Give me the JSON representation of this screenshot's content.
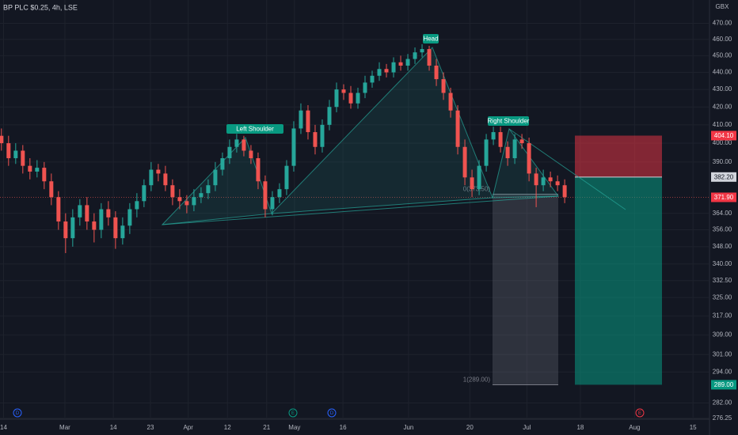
{
  "chart_data": {
    "type": "candlestick",
    "title": "BP PLC $0.25, 4h, LSE",
    "y_unit": "GBX",
    "log_scale": true,
    "grid": true,
    "up_color": "#26a69a",
    "down_color": "#ef5350",
    "open": [
      404,
      400,
      392,
      396,
      388,
      385,
      387,
      380,
      372,
      360,
      352,
      362,
      368,
      360,
      356,
      366,
      362,
      352,
      358,
      366,
      370,
      378,
      386,
      384,
      378,
      372,
      370,
      368,
      372,
      374,
      378,
      386,
      392,
      398,
      402,
      396,
      392,
      380,
      366,
      372,
      376,
      388,
      408,
      418,
      406,
      398,
      410,
      420,
      430,
      428,
      422,
      428,
      434,
      438,
      442,
      440,
      446,
      444,
      448,
      452,
      454,
      444,
      436,
      428,
      418,
      398,
      382,
      376,
      388,
      402,
      406,
      398,
      392,
      402,
      400,
      384,
      378,
      382,
      380,
      378
    ],
    "high": [
      408,
      404,
      400,
      399,
      392,
      391,
      390,
      384,
      375,
      364,
      366,
      371,
      372,
      364,
      369,
      370,
      365,
      362,
      369,
      374,
      381,
      390,
      389,
      388,
      381,
      376,
      373,
      376,
      377,
      381,
      390,
      395,
      402,
      405,
      404,
      399,
      395,
      383,
      375,
      379,
      391,
      412,
      422,
      421,
      410,
      413,
      424,
      434,
      433,
      432,
      431,
      438,
      441,
      446,
      445,
      449,
      450,
      451,
      455,
      457,
      456,
      448,
      440,
      431,
      421,
      402,
      386,
      391,
      405,
      409,
      409,
      401,
      405,
      405,
      403,
      387,
      386,
      385,
      383,
      381
    ],
    "low": [
      396,
      388,
      389,
      384,
      381,
      382,
      376,
      368,
      356,
      345,
      348,
      358,
      356,
      350,
      352,
      358,
      347,
      349,
      354,
      362,
      367,
      375,
      380,
      375,
      368,
      366,
      364,
      365,
      369,
      371,
      375,
      383,
      389,
      395,
      393,
      389,
      376,
      362,
      363,
      369,
      373,
      385,
      405,
      402,
      394,
      395,
      407,
      417,
      424,
      419,
      419,
      425,
      431,
      435,
      437,
      437,
      441,
      441,
      445,
      449,
      441,
      432,
      424,
      414,
      394,
      378,
      372,
      373,
      385,
      399,
      395,
      388,
      389,
      397,
      380,
      367,
      375,
      377,
      375,
      369
    ],
    "close": [
      400,
      392,
      396,
      388,
      385,
      387,
      380,
      372,
      360,
      352,
      362,
      368,
      360,
      356,
      366,
      362,
      352,
      358,
      366,
      370,
      378,
      386,
      384,
      378,
      372,
      370,
      368,
      372,
      374,
      378,
      386,
      392,
      398,
      402,
      396,
      392,
      380,
      366,
      372,
      376,
      388,
      408,
      418,
      406,
      398,
      410,
      420,
      430,
      428,
      422,
      428,
      434,
      438,
      442,
      440,
      446,
      444,
      448,
      452,
      454,
      444,
      436,
      428,
      418,
      398,
      382,
      376,
      388,
      402,
      406,
      398,
      392,
      402,
      400,
      384,
      378,
      382,
      380,
      378,
      372
    ],
    "xlim": [
      -0.2,
      99.2
    ],
    "xticks": [
      {
        "value": 0.3,
        "label": "14"
      },
      {
        "value": 8.9,
        "label": "Mar"
      },
      {
        "value": 15.7,
        "label": "14"
      },
      {
        "value": 20.9,
        "label": "23"
      },
      {
        "value": 26.2,
        "label": "Apr"
      },
      {
        "value": 31.7,
        "label": "12"
      },
      {
        "value": 37.2,
        "label": "21"
      },
      {
        "value": 41.1,
        "label": "May"
      },
      {
        "value": 47.9,
        "label": "16"
      },
      {
        "value": 57.1,
        "label": "Jun"
      },
      {
        "value": 65.7,
        "label": "20"
      },
      {
        "value": 73.7,
        "label": "Jul"
      },
      {
        "value": 81.2,
        "label": "18"
      },
      {
        "value": 88.8,
        "label": "Aug"
      },
      {
        "value": 97,
        "label": "15"
      }
    ],
    "ylim": [
      276.5,
      485
    ],
    "yticks": [
      {
        "value": 276.25,
        "label": "276.25"
      },
      {
        "value": 282,
        "label": "282.00"
      },
      {
        "value": 294,
        "label": "294.00"
      },
      {
        "value": 301,
        "label": "301.00"
      },
      {
        "value": 309,
        "label": "309.00"
      },
      {
        "value": 317,
        "label": "317.00"
      },
      {
        "value": 325,
        "label": "325.00"
      },
      {
        "value": 332.5,
        "label": "332.50"
      },
      {
        "value": 340,
        "label": "340.00"
      },
      {
        "value": 348,
        "label": "348.00"
      },
      {
        "value": 356,
        "label": "356.00"
      },
      {
        "value": 364,
        "label": "364.00"
      },
      {
        "value": 390,
        "label": "390.00"
      },
      {
        "value": 400,
        "label": "400.00"
      },
      {
        "value": 410,
        "label": "410.00"
      },
      {
        "value": 420,
        "label": "420.00"
      },
      {
        "value": 430,
        "label": "430.00"
      },
      {
        "value": 440,
        "label": "440.00"
      },
      {
        "value": 450,
        "label": "450.00"
      },
      {
        "value": 460,
        "label": "460.00"
      },
      {
        "value": 470,
        "label": "470.00"
      }
    ],
    "annotations": [
      "Left Shoulder",
      "Head",
      "Right Shoulder"
    ],
    "position": {
      "values": [
        404.1,
        382.2,
        289
      ],
      "value_labels": [
        "404.10",
        "382.20",
        "289.00"
      ]
    },
    "last_price": {
      "value": 371.9,
      "label": "371.90"
    },
    "fib": {
      "values": [
        373.5,
        289
      ],
      "value_labels": [
        "0(373.50)",
        "1(289.00)"
      ]
    },
    "events": [
      "D",
      "E",
      "D",
      "E"
    ]
  }
}
